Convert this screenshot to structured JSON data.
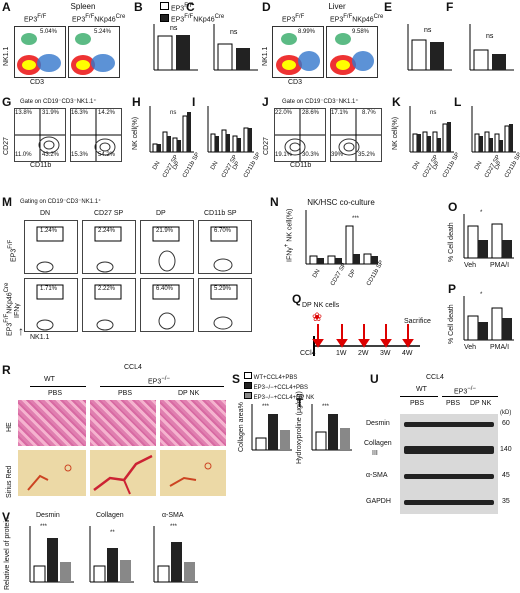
{
  "panelA": {
    "letter": "A",
    "title": "Spleen",
    "g1": "EP3",
    "g1sup": "F/F",
    "g2": "EP3",
    "g2sup": "F/F",
    "g2b": "NKp46",
    "g2bsup": "Cre",
    "pct1": "5.04%",
    "pct2": "5.24%",
    "ylab": "NK1.1",
    "xlab": "CD3"
  },
  "panelB": {
    "letter": "B",
    "ylab": "NK1.1",
    "ylab2": "CD3",
    "ylab3": "cell percentage",
    "sig": "ns",
    "legend1": "EP3",
    "legend1sup": "F/F",
    "legend2": "EP3",
    "legend2sup": "F/F",
    "legend2b": "NKp46",
    "legend2bsup": "Cre"
  },
  "panelC": {
    "letter": "C",
    "ylab": "NK1.1",
    "ylab2": "CD3",
    "ylab3": "cell numbers (10",
    "ylabsup": "5",
    "ylab4": ")",
    "sig": "ns"
  },
  "panelD": {
    "letter": "D",
    "title": "Liver",
    "g1": "EP3",
    "g1sup": "F/F",
    "g2": "EP3",
    "g2sup": "F/F",
    "g2b": "NKp46",
    "g2bsup": "Cre",
    "pct1": "8.99%",
    "pct2": "9.58%",
    "ylab": "NK1.1",
    "xlab": "CD3"
  },
  "panelE": {
    "letter": "E",
    "sig": "ns"
  },
  "panelF": {
    "letter": "F",
    "sig": "ns"
  },
  "panelG": {
    "letter": "G",
    "gate": "Gate on CD19",
    "gate2": "CD3",
    "gate3": "NK1.1",
    "q1": [
      "13.8%",
      "31.9%",
      "11.0%",
      "43.2%"
    ],
    "q2": [
      "16.3%",
      "14.2%",
      "15.3%",
      "54.2%"
    ],
    "ylab": "CD27",
    "xlab": "CD11b"
  },
  "panelH": {
    "letter": "H",
    "ylab": "NK cell(%)",
    "cats": [
      "DN",
      "CD27 SP",
      "DP",
      "CD11b SP"
    ]
  },
  "panelI": {
    "letter": "I",
    "ylab": "NK cell numbers (10",
    "ylabsup": "5",
    "ylab2": ")",
    "cats": [
      "DN",
      "CD27 SP",
      "DP",
      "CD11b SP"
    ]
  },
  "panelJ": {
    "letter": "J",
    "gate": "Gate on CD19",
    "gate2": "CD3",
    "gate3": "NK1.1",
    "q1": [
      "22.0%",
      "28.6%",
      "19.1%",
      "30.3%"
    ],
    "q2": [
      "17.1%",
      "8.7%",
      "39%",
      "35.2%"
    ],
    "ylab": "CD27",
    "xlab": "CD11b"
  },
  "panelK": {
    "letter": "K",
    "ylab": "NK cell(%)",
    "cats": [
      "DN",
      "CD27 SP",
      "DP",
      "CD11b SP"
    ]
  },
  "panelL": {
    "letter": "L",
    "ylab": "NK cell numbers (10",
    "ylabsup": "5",
    "ylab2": ")",
    "cats": [
      "DN",
      "CD27 SP",
      "DP",
      "CD11b SP"
    ]
  },
  "panelM": {
    "letter": "M",
    "gate": "Gating on CD19",
    "gate2": "CD3",
    "gate3": "NK1.1",
    "cols": [
      "DN",
      "CD27 SP",
      "DP",
      "CD11b SP"
    ],
    "row1": [
      "1.24%",
      "2.24%",
      "21.9%",
      "6.70%"
    ],
    "row2": [
      "1.71%",
      "2.22%",
      "6.40%",
      "5.29%"
    ],
    "r1lab": "EP3",
    "r1sup": "F/F",
    "r2lab": "EP3",
    "r2sup": "F/F",
    "r2b": "NKp46",
    "r2bsup": "Cre",
    "ylab": "IFNγ",
    "xlab": "NK1.1"
  },
  "panelN": {
    "letter": "N",
    "title": "NK/HSC co-culture",
    "ylab": "IFNγ",
    "ylab2": "NK cell(%)",
    "cats": [
      "DN",
      "CD27 SP",
      "DP",
      "CD11b SP"
    ]
  },
  "panelO": {
    "letter": "O",
    "ylab": "% Cell death",
    "cats": [
      "Veh",
      "PMA/I"
    ]
  },
  "panelP": {
    "letter": "P",
    "ylab": "% Cell death",
    "cats": [
      "Veh",
      "PMA/I"
    ]
  },
  "panelQ": {
    "letter": "Q",
    "cells": "DP NK cells",
    "start": "CCl4",
    "weeks": [
      "1W",
      "2W",
      "3W",
      "4W"
    ],
    "end": "Sacrifice"
  },
  "panelR": {
    "letter": "R",
    "top": "CCL4",
    "wt": "WT",
    "ep3": "EP3",
    "ep3sup": "−/−",
    "cols": [
      "PBS",
      "PBS",
      "DP NK"
    ],
    "rows": [
      "HE",
      "Sirius Red"
    ]
  },
  "panelS": {
    "letter": "S",
    "ylab": "Collagen area%",
    "legend": [
      "WT+CCL4+PBS",
      "EP3−/−+CCL4+PBS",
      "EP3−/−+CCL4+DP NK"
    ]
  },
  "panelT": {
    "letter": "T",
    "ylab": "Hydroxyproline (μg/mg)"
  },
  "panelU": {
    "letter": "U",
    "top": "CCL4",
    "wt": "WT",
    "ep3": "EP3",
    "ep3sup": "−/−",
    "cols": [
      "PBS",
      "PBS",
      "DP NK"
    ],
    "kd": "(kD)",
    "proteins": [
      "Desmin",
      "Collagen",
      "III",
      "α-SMA",
      "GAPDH"
    ],
    "mw": [
      "60",
      "140",
      "45",
      "35"
    ]
  },
  "panelV": {
    "letter": "V",
    "ylab": "Relative level of protein",
    "titles": [
      "Desmin",
      "Collagen",
      "α-SMA"
    ]
  },
  "sig": {
    "star3": "***",
    "star2": "**",
    "star1": "*",
    "ns": "ns"
  }
}
